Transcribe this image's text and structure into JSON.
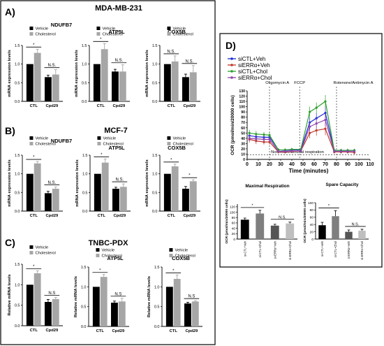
{
  "panels": {
    "A": {
      "letter": "A)",
      "title": "MDA-MB-231"
    },
    "B": {
      "letter": "B)",
      "title": "MCF-7"
    },
    "C": {
      "letter": "C)",
      "title": "TNBC-PDX"
    },
    "D": {
      "letter": "D)"
    }
  },
  "colors": {
    "vehicle": "#000000",
    "cholesterol": "#a6a6a6",
    "axis": "#000000",
    "siCTL_veh": "#1f2bd6",
    "siERRa_veh": "#c0392b",
    "siCTL_chol": "#2ca02c",
    "siERRa_chol": "#8e44ad"
  },
  "chart_data": [
    {
      "id": "A1",
      "type": "bar",
      "title": "NDUFB7",
      "ylabel": "mRNA expression levels",
      "ylim": [
        0,
        1.5
      ],
      "yticks": [
        "0.0",
        "0.5",
        "1.0",
        "1.5"
      ],
      "categories": [
        "CTL",
        "Cpd29"
      ],
      "legend": [
        "Vehicle",
        "Cholesterol"
      ],
      "series": [
        {
          "name": "Vehicle",
          "values": [
            1.0,
            0.65
          ]
        },
        {
          "name": "Cholesterol",
          "values": [
            1.3,
            0.72
          ]
        }
      ],
      "errors": [
        [
          0,
          0.1
        ],
        [
          0.05,
          0.13
        ]
      ],
      "sig": [
        "*",
        "N.S."
      ],
      "legend_position": "top-left"
    },
    {
      "id": "A2",
      "type": "bar",
      "title": "ATP5L",
      "ylabel": "mRNA expression levels",
      "ylim": [
        0,
        1.5
      ],
      "yticks": [
        "0.0",
        "0.5",
        "1.0",
        "1.5"
      ],
      "categories": [
        "CTL",
        "Cpd29"
      ],
      "legend": [
        "Vehicle",
        "Cholesterol"
      ],
      "series": [
        {
          "name": "Vehicle",
          "values": [
            1.0,
            0.8
          ]
        },
        {
          "name": "Cholesterol",
          "values": [
            1.4,
            0.8
          ]
        }
      ],
      "errors": [
        [
          0,
          0.15
        ],
        [
          0.06,
          0.18
        ]
      ],
      "sig": [
        "*",
        "N.S."
      ],
      "legend_position": "top-right"
    },
    {
      "id": "A3",
      "type": "bar",
      "title": "COX5B",
      "ylabel": "mRNA expression levels",
      "ylim": [
        0,
        1.5
      ],
      "yticks": [
        "0.0",
        "0.5",
        "1.0",
        "1.5"
      ],
      "categories": [
        "CTL",
        "Cpd29"
      ],
      "legend": [
        "Vehicle",
        "Cholesterol"
      ],
      "series": [
        {
          "name": "Vehicle",
          "values": [
            1.0,
            0.65
          ]
        },
        {
          "name": "Cholesterol",
          "values": [
            1.07,
            0.78
          ]
        }
      ],
      "errors": [
        [
          0,
          0.15
        ],
        [
          0.08,
          0.18
        ]
      ],
      "sig": [
        "N.S.",
        "N.S."
      ],
      "legend_position": "top-right"
    },
    {
      "id": "B1",
      "type": "bar",
      "title": "NDUFB7",
      "ylabel": "mRNA expression levels",
      "ylim": [
        0,
        1.5
      ],
      "yticks": [
        "0.0",
        "0.5",
        "1.0",
        "1.5"
      ],
      "categories": [
        "CTL",
        "Cpd29"
      ],
      "legend": [
        "Vehicle",
        "Cholesterol"
      ],
      "series": [
        {
          "name": "Vehicle",
          "values": [
            1.0,
            0.48
          ]
        },
        {
          "name": "Cholesterol",
          "values": [
            1.28,
            0.6
          ]
        }
      ],
      "errors": [
        [
          0,
          0.05
        ],
        [
          0.05,
          0.05
        ]
      ],
      "sig": [
        "*",
        "N.S."
      ],
      "legend_position": "top-right"
    },
    {
      "id": "B2",
      "type": "bar",
      "title": "ATP5L",
      "ylabel": "mRNA expression levels",
      "ylim": [
        0,
        1.5
      ],
      "yticks": [
        "0.0",
        "0.5",
        "1.0",
        "1.5"
      ],
      "categories": [
        "CTL",
        "Cpd29"
      ],
      "legend": [
        "Vehicle",
        "Cholesterol"
      ],
      "series": [
        {
          "name": "Vehicle",
          "values": [
            1.0,
            0.6
          ]
        },
        {
          "name": "Cholesterol",
          "values": [
            1.3,
            0.65
          ]
        }
      ],
      "errors": [
        [
          0,
          0.1
        ],
        [
          0.04,
          0.08
        ]
      ],
      "sig": [
        "*",
        "N.S."
      ],
      "legend_position": "top-right"
    },
    {
      "id": "B3",
      "type": "bar",
      "title": "COX5B",
      "ylabel": "mRNA expression levels",
      "ylim": [
        0,
        1.5
      ],
      "yticks": [
        "0.0",
        "0.5",
        "1.0",
        "1.5"
      ],
      "categories": [
        "CTL",
        "Cpd29"
      ],
      "legend": [
        "Vehicle",
        "Cholesterol"
      ],
      "series": [
        {
          "name": "Vehicle",
          "values": [
            1.0,
            0.6
          ]
        },
        {
          "name": "Cholesterol",
          "values": [
            1.2,
            0.8
          ]
        }
      ],
      "errors": [
        [
          0,
          0.06
        ],
        [
          0.06,
          0.04
        ]
      ],
      "sig": [
        "*",
        "*"
      ],
      "legend_position": "top-right"
    },
    {
      "id": "C1",
      "type": "bar",
      "title": "",
      "ylabel": "Relative mRNA levels",
      "ylim": [
        0,
        1.5
      ],
      "yticks": [
        "0.0",
        "0.5",
        "1.0",
        "1.5"
      ],
      "categories": [
        "CTL",
        "Cpd29"
      ],
      "legend": [
        "Vehicle",
        "Cholesterol"
      ],
      "series": [
        {
          "name": "Vehicle",
          "values": [
            1.0,
            0.58
          ]
        },
        {
          "name": "Cholesterol",
          "values": [
            1.28,
            0.65
          ]
        }
      ],
      "errors": [
        [
          0,
          0.06
        ],
        [
          0.06,
          0.04
        ]
      ],
      "sig": [
        "*",
        "N.S"
      ],
      "legend_position": "top-right"
    },
    {
      "id": "C2",
      "type": "bar",
      "title": "ATP5L",
      "ylabel": "Relative mRNA levels",
      "ylim": [
        0,
        1.5
      ],
      "yticks": [
        "0.0",
        "0.5",
        "1.0",
        "1.5"
      ],
      "categories": [
        "CTL",
        "Cpd29"
      ],
      "legend": [
        "Vehicle",
        "Cholesterol"
      ],
      "series": [
        {
          "name": "Vehicle",
          "values": [
            1.0,
            0.6
          ]
        },
        {
          "name": "Cholesterol",
          "values": [
            1.25,
            0.63
          ]
        }
      ],
      "errors": [
        [
          0,
          0.06
        ],
        [
          0.04,
          0.08
        ]
      ],
      "sig": [
        "*",
        "N.S"
      ],
      "legend_position": "top-right"
    },
    {
      "id": "C3",
      "type": "bar",
      "title": "COX5B",
      "ylabel": "Relative mRNA levels",
      "ylim": [
        0,
        1.5
      ],
      "yticks": [
        "0.0",
        "0.5",
        "1.0",
        "1.5"
      ],
      "categories": [
        "CTL",
        "Cpd29"
      ],
      "legend": [
        "Vehicle",
        "Cholesterol"
      ],
      "series": [
        {
          "name": "Vehicle",
          "values": [
            1.0,
            0.58
          ]
        },
        {
          "name": "Cholesterol",
          "values": [
            1.2,
            0.63
          ]
        }
      ],
      "errors": [
        [
          0,
          0.1
        ],
        [
          0.03,
          0.02
        ]
      ],
      "sig": [
        "*",
        "N.S"
      ],
      "legend_position": "top-right"
    },
    {
      "id": "D_ocr",
      "type": "line",
      "xlabel": "Time (minutes)",
      "ylabel": "OCR (pmol/min/20000 cells)",
      "xlim": [
        0,
        110
      ],
      "ylim": [
        0,
        130
      ],
      "xticks": [
        "0",
        "10",
        "20",
        "30",
        "40",
        "50",
        "60",
        "70",
        "80",
        "90",
        "100",
        "110"
      ],
      "yticks": [
        "0",
        "10",
        "20",
        "30",
        "40",
        "50",
        "60",
        "70",
        "80",
        "90",
        "100",
        "110",
        "120",
        "130"
      ],
      "x": [
        2,
        8,
        15,
        20,
        28,
        34,
        40,
        48,
        56,
        62,
        70,
        78,
        84,
        90,
        96
      ],
      "series": [
        {
          "name": "siCTL+Veh",
          "values": [
            45,
            43,
            42,
            42,
            18,
            17,
            18,
            18,
            70,
            78,
            88,
            17,
            17,
            17,
            17
          ]
        },
        {
          "name": "siERRα+Veh",
          "values": [
            38,
            35,
            33,
            33,
            14,
            14,
            15,
            16,
            50,
            55,
            58,
            14,
            14,
            14,
            13
          ]
        },
        {
          "name": "siCTL+Chol",
          "values": [
            50,
            48,
            47,
            46,
            18,
            18,
            19,
            19,
            90,
            98,
            110,
            17,
            17,
            17,
            17
          ]
        },
        {
          "name": "siERRα+Chol",
          "values": [
            40,
            39,
            38,
            38,
            15,
            15,
            16,
            16,
            62,
            68,
            75,
            15,
            15,
            15,
            15
          ]
        }
      ],
      "errors": [
        6,
        6,
        5,
        5,
        3,
        3,
        3,
        3,
        10,
        10,
        12,
        3,
        3,
        3,
        3
      ],
      "annotations": [
        "Oligomycin A",
        "FCCP",
        "Rotenone/Antimycin  A",
        "Non-mitochondrial respiration"
      ],
      "injections": [
        20,
        47,
        80
      ],
      "baseline": 9,
      "legend_position": "top-left"
    },
    {
      "id": "D_max",
      "type": "bar",
      "title": "Maximal Respiration",
      "ylabel": "OCR (pmol/min/20000 cells)",
      "ylim": [
        0,
        130
      ],
      "yticks": [
        "0",
        "20",
        "40",
        "60",
        "80",
        "100",
        "120"
      ],
      "categories": [
        "si-CTL+Veh",
        "si-CTL+Chol",
        "si-ERRα+Veh",
        "si-ERRα+Chol"
      ],
      "values": [
        72,
        95,
        50,
        58
      ],
      "errors": [
        6,
        12,
        5,
        5
      ],
      "sig": [
        {
          "text": "*",
          "from": 0,
          "to": 1
        },
        {
          "text": "N.S.",
          "from": 2,
          "to": 3
        }
      ]
    },
    {
      "id": "D_spare",
      "type": "bar",
      "title": "Spare Capacity",
      "ylabel": "OCR (pmol/min/20000 cells)",
      "ylim": [
        0,
        100
      ],
      "yticks": [
        "0",
        "20",
        "40",
        "60",
        "80",
        "100"
      ],
      "categories": [
        "si-CTL+Veh",
        "si-CTL+Chol",
        "si-ERRα+Veh",
        "si-ERRα+Chol"
      ],
      "values": [
        38,
        63,
        20,
        23
      ],
      "errors": [
        8,
        15,
        5,
        4
      ],
      "sig": [
        {
          "text": "*",
          "from": 0,
          "to": 1
        },
        {
          "text": "N.S.",
          "from": 2,
          "to": 3
        }
      ]
    }
  ]
}
